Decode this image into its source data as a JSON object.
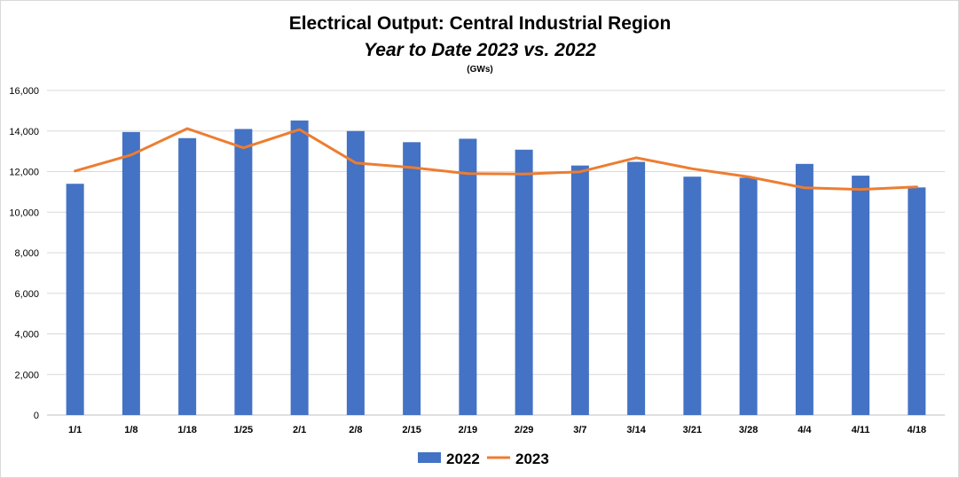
{
  "chart_data": {
    "type": "bar",
    "title": "Electrical Output:  Central Industrial Region",
    "subtitle": "Year to Date 2023 vs. 2022",
    "units_label": "(GWs)",
    "categories": [
      "1/1",
      "1/8",
      "1/18",
      "1/25",
      "2/1",
      "2/8",
      "2/15",
      "2/19",
      "2/29",
      "3/7",
      "3/14",
      "3/21",
      "3/28",
      "4/4",
      "4/11",
      "4/18"
    ],
    "series": [
      {
        "name": "2022",
        "kind": "bar",
        "color": "#4472c4",
        "values": [
          11400,
          13950,
          13650,
          14100,
          14520,
          14000,
          13450,
          13620,
          13080,
          12300,
          12480,
          11750,
          11700,
          12380,
          11800,
          11220
        ]
      },
      {
        "name": "2023",
        "kind": "line",
        "color": "#ed7d31",
        "values": [
          12030,
          12820,
          14120,
          13170,
          14070,
          12430,
          12200,
          11900,
          11880,
          11990,
          12680,
          12140,
          11740,
          11200,
          11120,
          11250
        ]
      }
    ],
    "ylim": [
      0,
      16000
    ],
    "yticks": [
      0,
      2000,
      4000,
      6000,
      8000,
      10000,
      12000,
      14000,
      16000
    ],
    "ytick_labels": [
      "0",
      "2,000",
      "4,000",
      "6,000",
      "8,000",
      "10,000",
      "12,000",
      "14,000",
      "16,000"
    ],
    "grid": true,
    "legend_position": "bottom"
  }
}
